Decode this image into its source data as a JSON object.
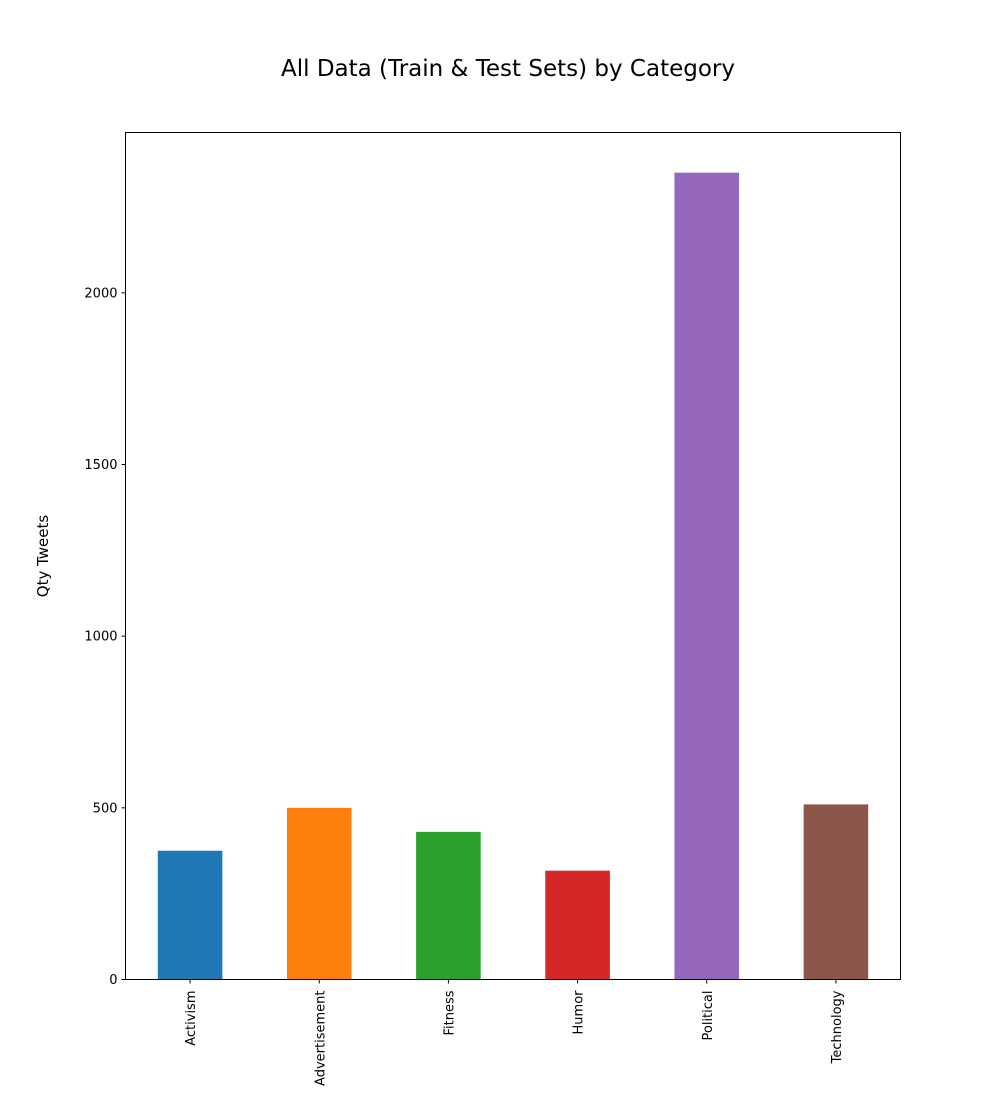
{
  "chart_data": {
    "type": "bar",
    "title": "All Data (Train & Test Sets) by Category",
    "xlabel": "",
    "ylabel": "Qty Tweets",
    "categories": [
      "Activism",
      "Advertisement",
      "Fitness",
      "Humor",
      "Political",
      "Technology"
    ],
    "values": [
      375,
      500,
      430,
      317,
      2350,
      510
    ],
    "colors": [
      "#1f77b4",
      "#ff7f0e",
      "#2ca02c",
      "#d62728",
      "#9467bd",
      "#8c564b"
    ],
    "yticks": [
      0,
      500,
      1000,
      1500,
      2000
    ],
    "ylim": [
      0,
      2467
    ],
    "grid": false,
    "legend": "none"
  }
}
